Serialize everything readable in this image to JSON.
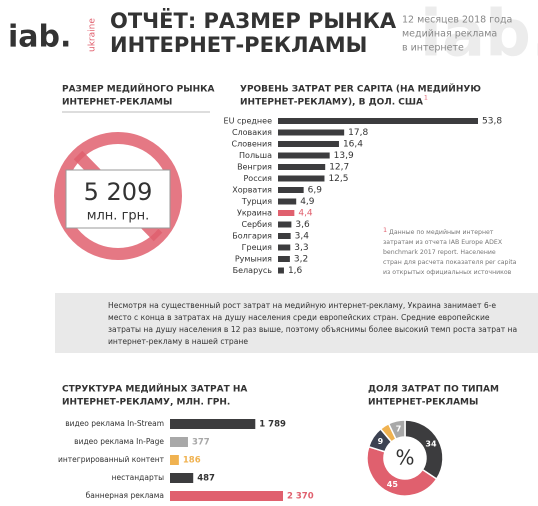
{
  "header": {
    "logo": "iab.",
    "logo_sub": "ukraine",
    "title_lines": [
      "ОТЧЁТ: РАЗМЕР РЫНКА",
      "ИНТЕРНЕТ-РЕКЛАМЫ"
    ],
    "subtitle_lines": [
      "12 месяцев 2018 года",
      "медийная реклама",
      "в интернете"
    ]
  },
  "market": {
    "title_lines": [
      "РАЗМЕР МЕДИЙНОГО РЫНКА",
      "ИНТЕРНЕТ-РЕКЛАМЫ"
    ],
    "value": "5 209",
    "unit": "млн. грн."
  },
  "note": {
    "marker": "1",
    "lines": [
      "Данные по медийным интернет",
      "затратам из отчета IAB Europe ADEX",
      "benchmark 2017 report. Население",
      "стран для расчета показателя per capita",
      "из открытых официальных источников"
    ]
  },
  "summary": {
    "lines": [
      "Несмотря на существенный рост затрат на медийную интернет-рекламу, Украина занимает 6-е",
      "место с конца в затратах на душу населения среди европейских стран. Средние европейские",
      "затраты на душу населения в 12 раз выше, поэтому объяснимы более высокий темп роста затрат на",
      "интернет-рекламу в нашей стране"
    ]
  },
  "chart_data": [
    {
      "type": "bar",
      "title": [
        "УРОВЕНЬ ЗАТРАТ PER CAPITA (НА МЕДИЙНУЮ",
        "ИНТЕРНЕТ-РЕКЛАМУ),  В ДОЛ. США"
      ],
      "title_note": "1",
      "categories": [
        "EU среднее",
        "Словакия",
        "Словения",
        "Польша",
        "Венгрия",
        "Россия",
        "Хорватия",
        "Турция",
        "Украина",
        "Сербия",
        "Болгария",
        "Греция",
        "Румыния",
        "Беларусь"
      ],
      "values": [
        53.8,
        17.8,
        16.4,
        13.9,
        12.7,
        12.5,
        6.9,
        4.9,
        4.4,
        3.6,
        3.4,
        3.3,
        3.2,
        1.6
      ],
      "value_labels": [
        "53,8",
        "17,8",
        "16,4",
        "13,9",
        "12,7",
        "12,5",
        "6,9",
        "4,9",
        "4,4",
        "3,6",
        "3,4",
        "3,3",
        "3,2",
        "1,6"
      ],
      "colors": [
        "#3c3c3e",
        "#3c3c3e",
        "#3c3c3e",
        "#3c3c3e",
        "#3c3c3e",
        "#3c3c3e",
        "#3c3c3e",
        "#3c3c3e",
        "#e0606e",
        "#3c3c3e",
        "#3c3c3e",
        "#3c3c3e",
        "#3c3c3e",
        "#3c3c3e"
      ]
    },
    {
      "type": "bar",
      "title": [
        "СТРУКТУРА МЕДИЙНЫХ ЗАТРАТ НА",
        "ИНТЕРНЕТ-РЕКЛАМУ,  МЛН. ГРН."
      ],
      "categories": [
        "видео реклама In-Stream",
        "видео реклама In-Page",
        "интегрированный контент",
        "нестандарты",
        "баннерная реклама"
      ],
      "values": [
        1789,
        377,
        186,
        487,
        2370
      ],
      "value_labels": [
        "1 789",
        "377",
        "186",
        "487",
        "2 370"
      ],
      "colors": [
        "#3c3c3e",
        "#a8a8a8",
        "#f0b250",
        "#3c3c3e",
        "#e0606e"
      ]
    },
    {
      "type": "pie",
      "title": [
        "ДОЛЯ ЗАТРАТ ПО ТИПАМ",
        "ИНТЕРНЕТ-РЕКЛАМЫ"
      ],
      "center_label": "%",
      "values": [
        34,
        45,
        9,
        4,
        7
      ],
      "colors": [
        "#3c3c3e",
        "#e0606e",
        "#3c4252",
        "#f0b250",
        "#a8a8a8"
      ]
    }
  ]
}
